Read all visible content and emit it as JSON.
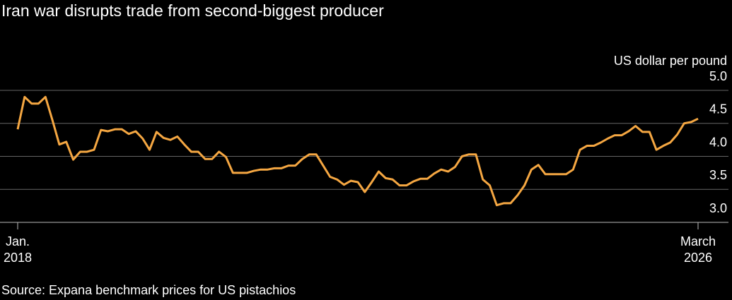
{
  "chart_data": {
    "type": "line",
    "title": "Iran war disrupts trade from second-biggest producer",
    "y_axis_label": "US dollar per pound",
    "source": "Source: Expana benchmark prices for US pistachios",
    "x": [
      "2018-01",
      "2018-02",
      "2018-03",
      "2018-04",
      "2018-05",
      "2018-06",
      "2018-07",
      "2018-08",
      "2018-09",
      "2018-10",
      "2018-11",
      "2018-12",
      "2019-01",
      "2019-02",
      "2019-03",
      "2019-04",
      "2019-05",
      "2019-06",
      "2019-07",
      "2019-08",
      "2019-09",
      "2019-10",
      "2019-11",
      "2019-12",
      "2020-01",
      "2020-02",
      "2020-03",
      "2020-04",
      "2020-05",
      "2020-06",
      "2020-07",
      "2020-08",
      "2020-09",
      "2020-10",
      "2020-11",
      "2020-12",
      "2021-01",
      "2021-02",
      "2021-03",
      "2021-04",
      "2021-05",
      "2021-06",
      "2021-07",
      "2021-08",
      "2021-09",
      "2021-10",
      "2021-11",
      "2021-12",
      "2022-01",
      "2022-02",
      "2022-03",
      "2022-04",
      "2022-05",
      "2022-06",
      "2022-07",
      "2022-08",
      "2022-09",
      "2022-10",
      "2022-11",
      "2022-12",
      "2023-01",
      "2023-02",
      "2023-03",
      "2023-04",
      "2023-05",
      "2023-06",
      "2023-07",
      "2023-08",
      "2023-09",
      "2023-10",
      "2023-11",
      "2023-12",
      "2024-01",
      "2024-02",
      "2024-03",
      "2024-04",
      "2024-05",
      "2024-06",
      "2024-07",
      "2024-08",
      "2024-09",
      "2024-10",
      "2024-11",
      "2024-12",
      "2025-01",
      "2025-02",
      "2025-03",
      "2025-04",
      "2025-05",
      "2025-06",
      "2025-07",
      "2025-08",
      "2025-09",
      "2025-10",
      "2025-11",
      "2025-12",
      "2026-01",
      "2026-02",
      "2026-03"
    ],
    "series": [
      {
        "name": "US pistachios",
        "color": "#f5a742",
        "values": [
          4.41,
          4.9,
          4.8,
          4.8,
          4.9,
          4.55,
          4.18,
          4.22,
          3.95,
          4.07,
          4.07,
          4.1,
          4.4,
          4.38,
          4.41,
          4.41,
          4.34,
          4.38,
          4.27,
          4.1,
          4.37,
          4.28,
          4.25,
          4.3,
          4.18,
          4.07,
          4.07,
          3.96,
          3.96,
          4.07,
          3.99,
          3.75,
          3.75,
          3.75,
          3.78,
          3.8,
          3.8,
          3.82,
          3.82,
          3.86,
          3.86,
          3.96,
          4.03,
          4.03,
          3.86,
          3.69,
          3.65,
          3.57,
          3.63,
          3.61,
          3.46,
          3.61,
          3.77,
          3.67,
          3.65,
          3.56,
          3.56,
          3.62,
          3.66,
          3.66,
          3.74,
          3.8,
          3.77,
          3.84,
          4.0,
          4.03,
          4.03,
          3.65,
          3.56,
          3.26,
          3.29,
          3.29,
          3.41,
          3.56,
          3.8,
          3.87,
          3.73,
          3.73,
          3.73,
          3.73,
          3.8,
          4.1,
          4.16,
          4.16,
          4.21,
          4.27,
          4.32,
          4.32,
          4.38,
          4.46,
          4.37,
          4.37,
          4.1,
          4.16,
          4.21,
          4.33,
          4.5,
          4.52,
          4.57
        ]
      }
    ],
    "xlim": [
      "2018-01",
      "2026-03"
    ],
    "xticks": [
      {
        "value": "2018-01",
        "label": "Jan.\n2018"
      },
      {
        "value": "2026-03",
        "label": "March\n2026"
      }
    ],
    "ylim": [
      3,
      5
    ],
    "yticks": [
      {
        "value": 3,
        "label": "3.0"
      },
      {
        "value": 3.5,
        "label": "3.5"
      },
      {
        "value": 4,
        "label": "4.0"
      },
      {
        "value": 4.5,
        "label": "4.5"
      },
      {
        "value": 5,
        "label": "5.0"
      }
    ],
    "grid": true
  }
}
